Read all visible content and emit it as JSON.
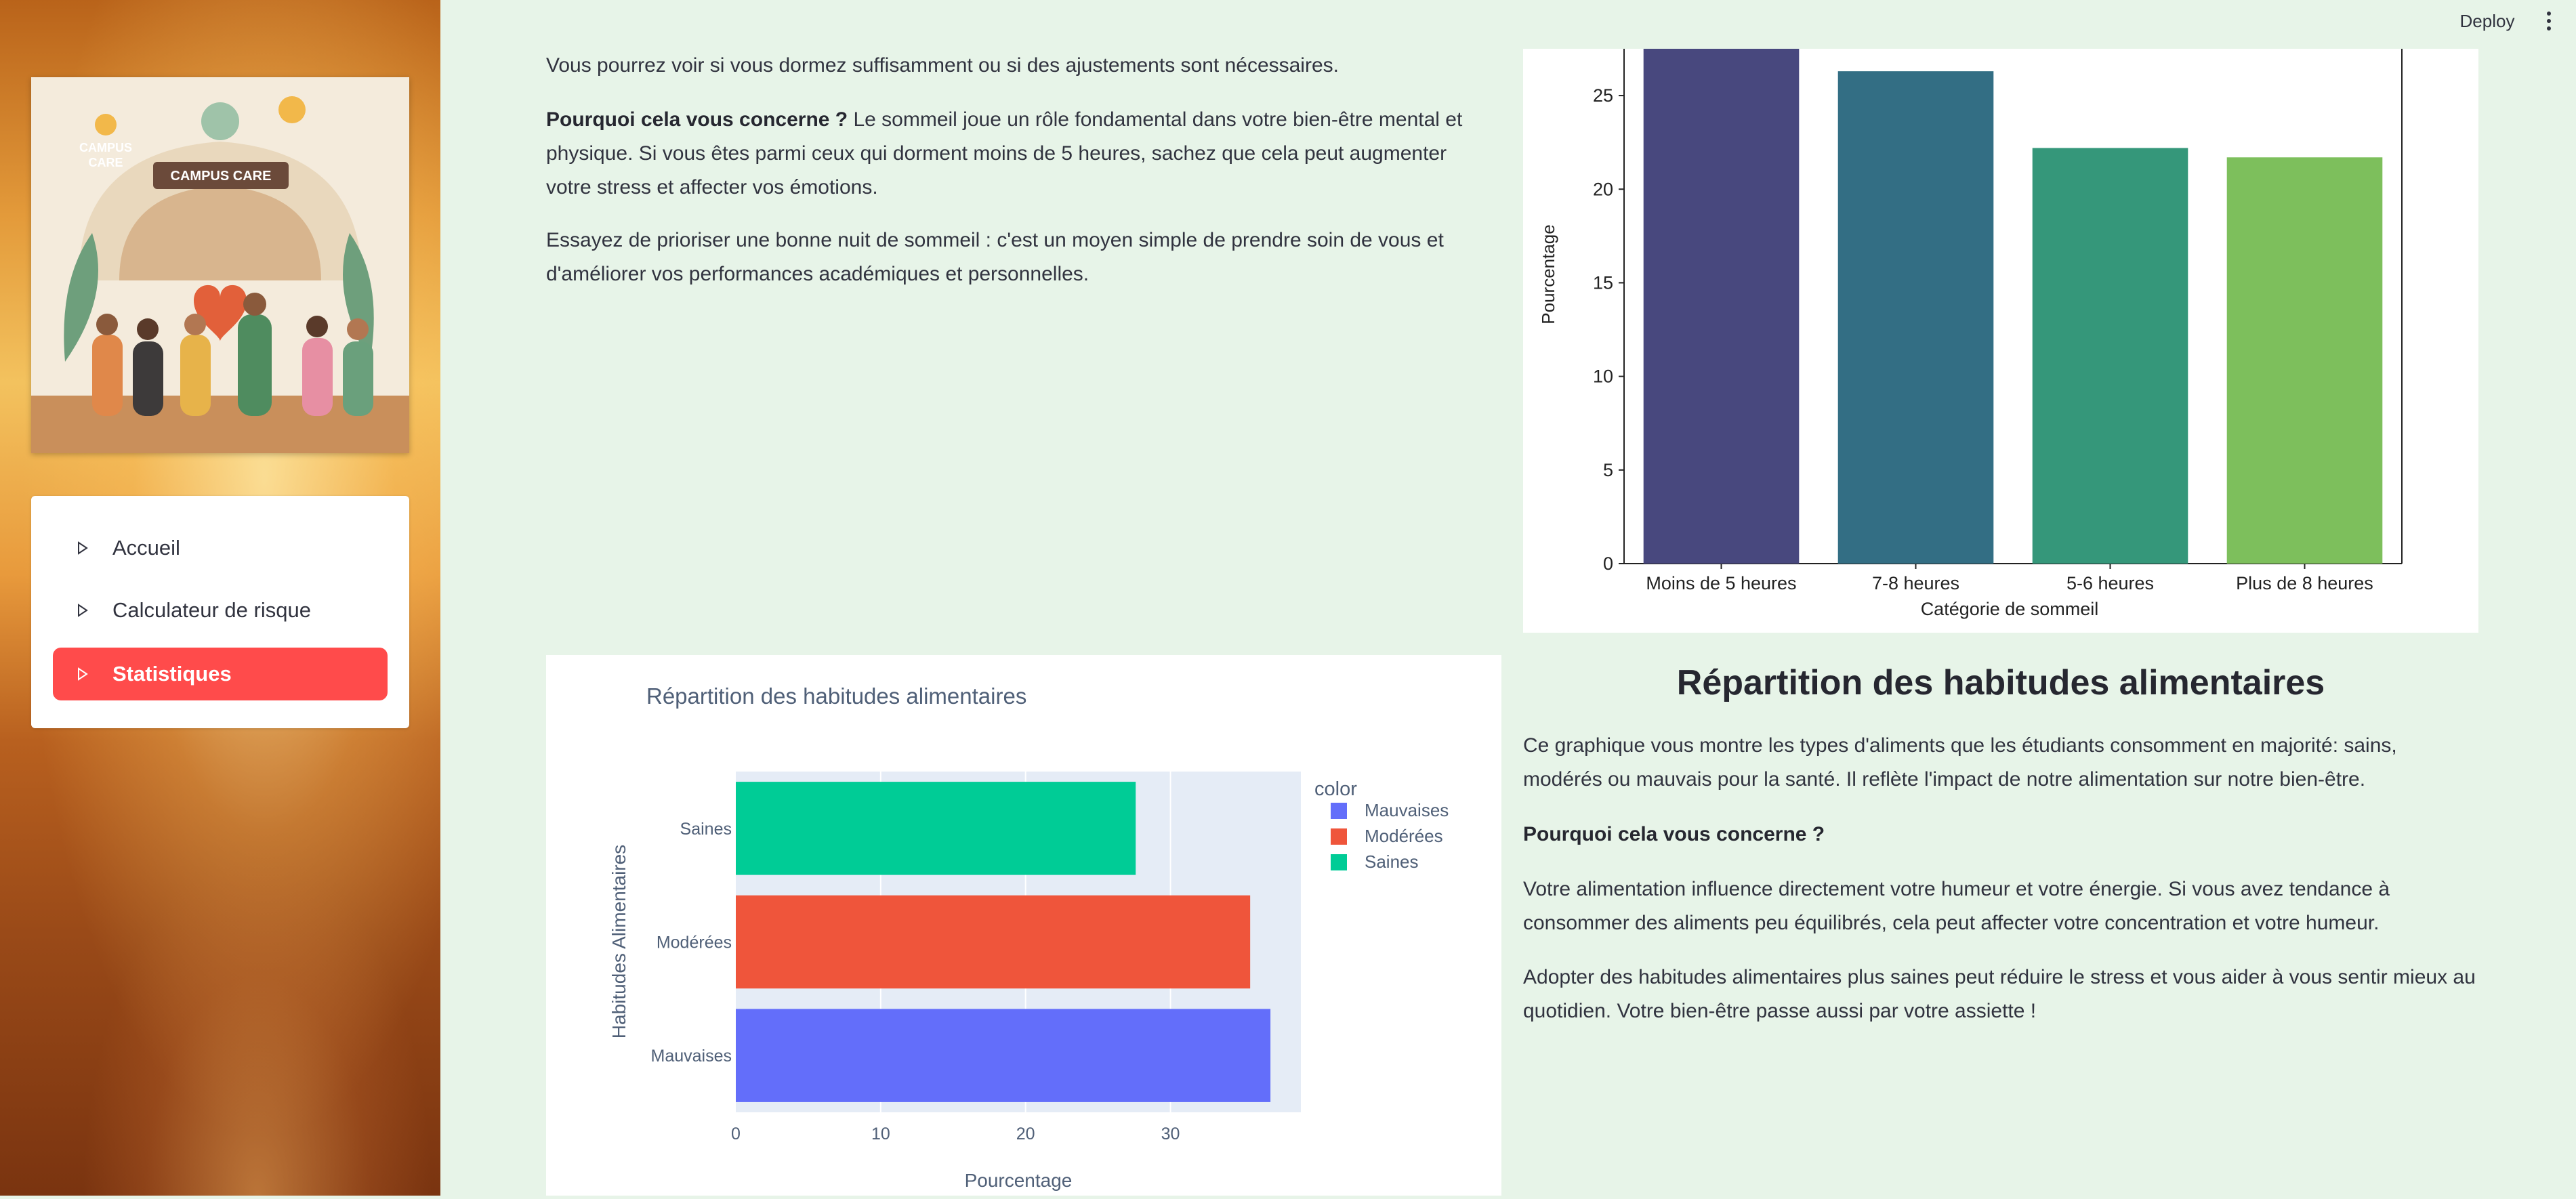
{
  "header": {
    "deploy_label": "Deploy",
    "menu_icon": "vertical-ellipsis-icon"
  },
  "sidebar": {
    "logo": {
      "line1": "CAMPUS",
      "line2": "CARE",
      "banner": "CAMPUS CARE"
    },
    "nav": [
      {
        "label": "Accueil",
        "active": false
      },
      {
        "label": "Calculateur de risque",
        "active": false
      },
      {
        "label": "Statistiques",
        "active": true
      }
    ]
  },
  "sleep_section": {
    "intro": "Vous pourrez voir si vous dormez suffisamment ou si des ajustements sont nécessaires.",
    "why_bold": "Pourquoi cela vous concerne ?",
    "why_text": " Le sommeil joue un rôle fondamental dans votre bien-être mental et physique. Si vous êtes parmi ceux qui dorment moins de 5 heures, sachez que cela peut augmenter votre stress et affecter vos émotions.",
    "tip": "Essayez de prioriser une bonne nuit de sommeil : c'est un moyen simple de prendre soin de vous et d'améliorer vos performances académiques et personnelles."
  },
  "food_section": {
    "title": "Répartition des habitudes alimentaires",
    "desc": "Ce graphique vous montre les types d'aliments que les étudiants consomment en majorité: sains, modérés ou mauvais pour la santé. Il reflète l'impact de notre alimentation sur notre bien-être.",
    "why": "Pourquoi cela vous concerne ?",
    "influence": "Votre alimentation influence directement votre humeur et votre énergie. Si vous avez tendance à consommer des aliments peu équilibrés, cela peut affecter votre concentration et votre humeur.",
    "adopt": "Adopter des habitudes alimentaires plus saines peut réduire le stress et vous aider à vous sentir mieux au quotidien. Votre bien-être passe aussi par votre assiette !"
  },
  "chart_data": [
    {
      "type": "bar",
      "title": "",
      "xlabel": "Catégorie de sommeil",
      "ylabel": "Pourcentage",
      "categories": [
        "Moins de 5 heures",
        "7-8 heures",
        "5-6 heures",
        "Plus de 8 heures"
      ],
      "values": [
        28.5,
        26.3,
        22.2,
        21.7
      ],
      "colors": [
        "#48487e",
        "#336e84",
        "#35977a",
        "#7dbf5c"
      ],
      "ylim": [
        0,
        27.5
      ],
      "yticks": [
        0,
        5,
        10,
        15,
        20,
        25
      ],
      "grid": false
    },
    {
      "type": "bar",
      "orientation": "horizontal",
      "title": "Répartition des habitudes alimentaires",
      "xlabel": "Pourcentage",
      "ylabel": "Habitudes Alimentaires",
      "categories": [
        "Mauvaises",
        "Modérées",
        "Saines"
      ],
      "values": [
        36.9,
        35.5,
        27.6
      ],
      "colors": [
        "#636efa",
        "#ef553b",
        "#00cc96"
      ],
      "xlim": [
        0,
        39
      ],
      "xticks": [
        0,
        10,
        20,
        30
      ],
      "legend_title": "color",
      "legend": [
        "Mauvaises",
        "Modérées",
        "Saines"
      ],
      "legend_position": "top-right",
      "grid": true
    }
  ]
}
